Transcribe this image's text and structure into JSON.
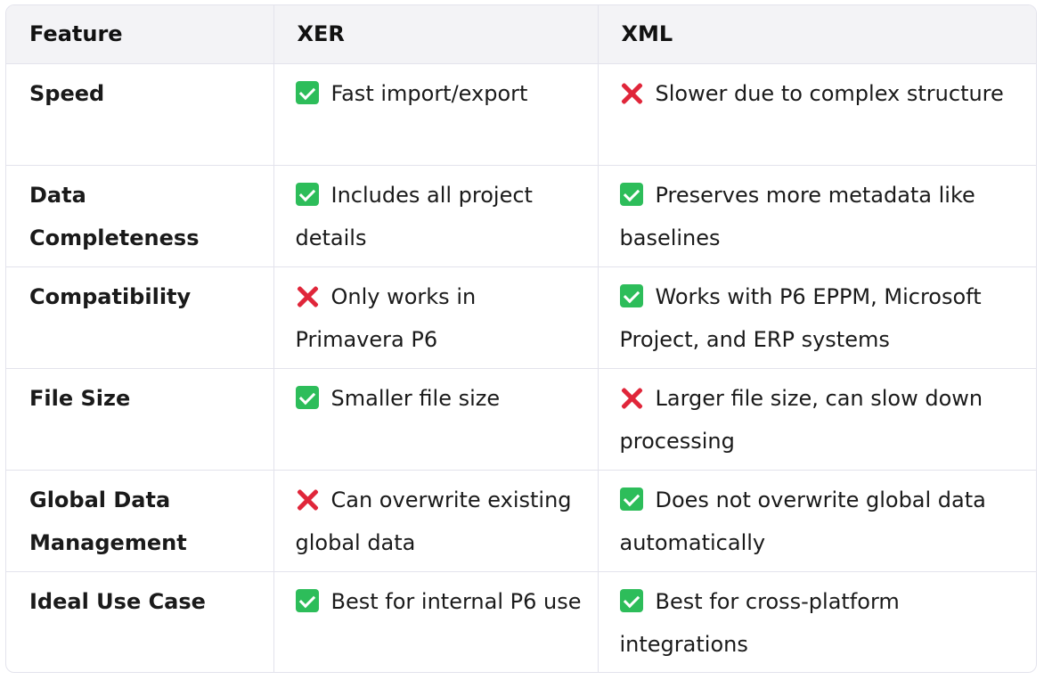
{
  "headers": [
    "Feature",
    "XER",
    "XML"
  ],
  "rows": [
    {
      "feature": "Speed",
      "xer": {
        "icon": "check-icon",
        "text": "Fast import/export"
      },
      "xml": {
        "icon": "cross-icon",
        "text": "Slower due to complex structure"
      }
    },
    {
      "feature": "Data Completeness",
      "xer": {
        "icon": "check-icon",
        "text": "Includes all project details"
      },
      "xml": {
        "icon": "check-icon",
        "text": "Preserves more metadata like baselines"
      }
    },
    {
      "feature": "Compatibility",
      "xer": {
        "icon": "cross-icon",
        "text": "Only works in Primavera P6"
      },
      "xml": {
        "icon": "check-icon",
        "text": "Works with P6 EPPM, Microsoft Project, and ERP systems"
      }
    },
    {
      "feature": "File Size",
      "xer": {
        "icon": "check-icon",
        "text": "Smaller file size"
      },
      "xml": {
        "icon": "cross-icon",
        "text": "Larger file size, can slow down processing"
      }
    },
    {
      "feature": "Global Data Management",
      "xer": {
        "icon": "cross-icon",
        "text": "Can overwrite existing global data"
      },
      "xml": {
        "icon": "check-icon",
        "text": "Does not overwrite global data automatically"
      }
    },
    {
      "feature": "Ideal Use Case",
      "xer": {
        "icon": "check-icon",
        "text": "Best for internal P6 use"
      },
      "xml": {
        "icon": "check-icon",
        "text": "Best for cross-platform integrations"
      }
    }
  ],
  "colors": {
    "check": "#2dbd5a",
    "cross": "#e0263a",
    "header_bg": "#f3f3f6",
    "border": "#e3e3ec"
  }
}
